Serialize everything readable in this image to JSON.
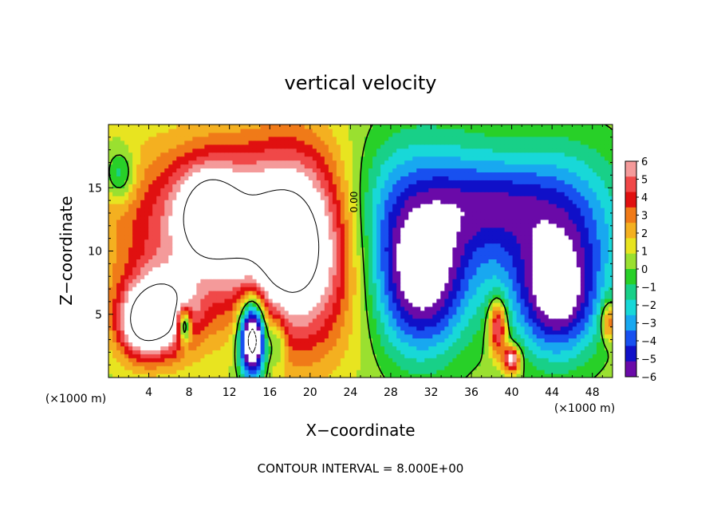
{
  "chart_data": {
    "type": "heatmap",
    "title": "vertical velocity",
    "xlabel": "X−coordinate",
    "ylabel": "Z−coordinate",
    "x_unit": "(×1000 m)",
    "x_unit_right": "(×1000 m)",
    "footer": "CONTOUR INTERVAL = 8.000E+00",
    "contour_label": "0.00",
    "xlim": [
      0,
      50
    ],
    "ylim": [
      0,
      20
    ],
    "x_ticks": [
      4,
      8,
      12,
      16,
      20,
      24,
      28,
      32,
      36,
      40,
      44,
      48
    ],
    "y_ticks": [
      5,
      10,
      15
    ],
    "colorbar": {
      "min": -6,
      "max": 6,
      "labels": [
        "6",
        "5",
        "4",
        "3",
        "2",
        "1",
        "0",
        "−1",
        "−2",
        "−3",
        "−4",
        "−5",
        "−6"
      ],
      "colors": [
        "#f49a9a",
        "#f04848",
        "#e01010",
        "#f07a18",
        "#f4b020",
        "#e8e420",
        "#9ae030",
        "#28d028",
        "#18d088",
        "#18d8d8",
        "#18a8f0",
        "#1850f0",
        "#1010c8",
        "#6a0aa8"
      ]
    },
    "field": {
      "background": 0.5,
      "features": [
        {
          "x": 11,
          "z": 12,
          "rx": 10,
          "rz": 6.5,
          "w": 6
        },
        {
          "x": 19,
          "z": 10,
          "rx": 5.5,
          "rz": 8,
          "w": 7
        },
        {
          "x": 5,
          "z": 5,
          "rx": 3.6,
          "rz": 3.3,
          "w": 8
        },
        {
          "x": 10,
          "z": 13,
          "rx": 2.8,
          "rz": 3.5,
          "w": 5
        },
        {
          "x": 3,
          "z": 4,
          "rx": 2.2,
          "rz": 2.5,
          "w": 3
        },
        {
          "x": 14.3,
          "z": 3.2,
          "rx": 1.3,
          "rz": 3.2,
          "w": -12
        },
        {
          "x": 7.5,
          "z": 4.2,
          "rx": 0.7,
          "rz": 1.4,
          "w": -7
        },
        {
          "x": 16.8,
          "z": 3,
          "rx": 0.9,
          "rz": 2.2,
          "w": -3
        },
        {
          "x": 31,
          "z": 13,
          "rx": 8,
          "rz": 6,
          "w": -5
        },
        {
          "x": 31,
          "z": 7,
          "rx": 4.5,
          "rz": 5.5,
          "w": -6
        },
        {
          "x": 44.5,
          "z": 12,
          "rx": 6.5,
          "rz": 6,
          "w": -5
        },
        {
          "x": 44.5,
          "z": 6,
          "rx": 4,
          "rz": 4.5,
          "w": -6
        },
        {
          "x": 38,
          "z": 14,
          "rx": 5,
          "rz": 3,
          "w": -2
        },
        {
          "x": 38.6,
          "z": 4,
          "rx": 0.9,
          "rz": 2.2,
          "w": 6
        },
        {
          "x": 40,
          "z": 1.5,
          "rx": 0.8,
          "rz": 1,
          "w": 7
        },
        {
          "x": 1.2,
          "z": 16,
          "rx": 1.5,
          "rz": 2,
          "w": -3
        },
        {
          "x": 49.6,
          "z": 4.5,
          "rx": 0.8,
          "rz": 1.5,
          "w": 4
        }
      ]
    }
  }
}
